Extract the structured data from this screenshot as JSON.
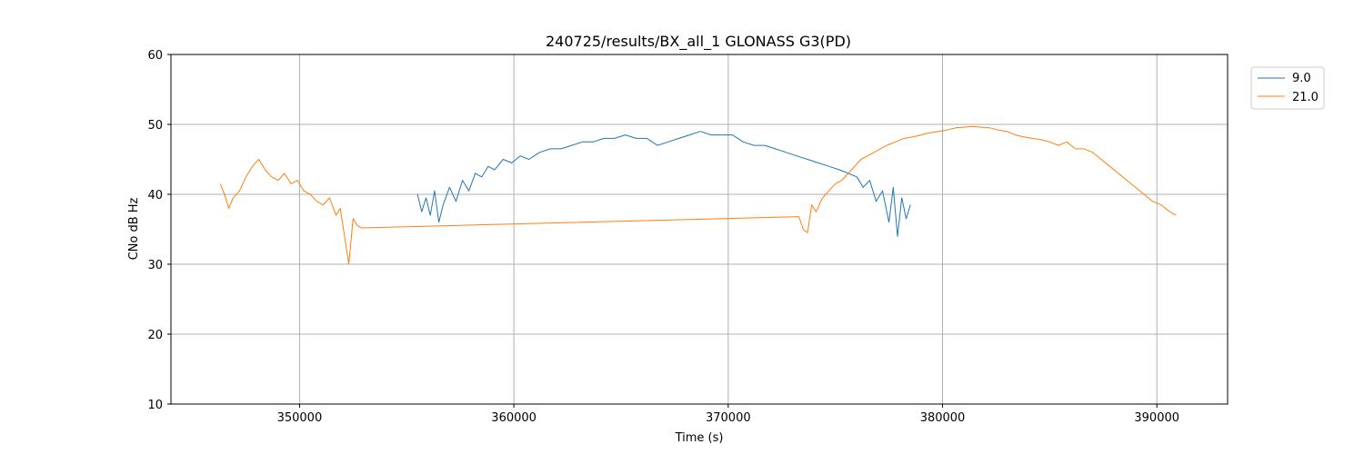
{
  "chart_data": {
    "type": "line",
    "title": "240725/results/BX_all_1 GLONASS G3(PD)",
    "xlabel": "Time (s)",
    "ylabel": "CNo dB Hz",
    "xlim": [
      344000,
      393300
    ],
    "ylim": [
      10,
      60
    ],
    "xticks": [
      350000,
      360000,
      370000,
      380000,
      390000
    ],
    "yticks": [
      10,
      20,
      30,
      40,
      50,
      60
    ],
    "grid": true,
    "legend_position": "outside-top-right",
    "series": [
      {
        "name": "9.0",
        "color": "#1f77b4",
        "x": [
          355500,
          355700,
          355900,
          356100,
          356300,
          356500,
          356700,
          357000,
          357300,
          357600,
          357900,
          358200,
          358500,
          358800,
          359100,
          359500,
          359900,
          360300,
          360700,
          361200,
          361700,
          362200,
          362700,
          363200,
          363700,
          364200,
          364700,
          365200,
          365700,
          366200,
          366700,
          367200,
          367700,
          368200,
          368700,
          369200,
          369700,
          370200,
          370700,
          371200,
          371700,
          372200,
          372700,
          373200,
          373700,
          374200,
          374700,
          375200,
          375600,
          376000,
          376300,
          376600,
          376900,
          377200,
          377500,
          377700,
          377900,
          378100,
          378300,
          378500
        ],
        "y": [
          40.0,
          37.5,
          39.5,
          37.0,
          40.5,
          36.0,
          38.5,
          41.0,
          39.0,
          42.0,
          40.5,
          43.0,
          42.5,
          44.0,
          43.5,
          45.0,
          44.5,
          45.5,
          45.0,
          46.0,
          46.5,
          46.5,
          47.0,
          47.5,
          47.5,
          48.0,
          48.0,
          48.5,
          48.0,
          48.0,
          47.0,
          47.5,
          48.0,
          48.5,
          49.0,
          48.5,
          48.5,
          48.5,
          47.5,
          47.0,
          47.0,
          46.5,
          46.0,
          45.5,
          45.0,
          44.5,
          44.0,
          43.5,
          43.0,
          42.5,
          41.0,
          42.0,
          39.0,
          40.5,
          36.0,
          41.0,
          34.0,
          39.5,
          36.5,
          38.5
        ]
      },
      {
        "name": "21.0",
        "color": "#ff7f0e",
        "x": [
          346300,
          346500,
          346700,
          346900,
          347200,
          347500,
          347800,
          348100,
          348400,
          348700,
          349000,
          349300,
          349600,
          349900,
          350200,
          350500,
          350800,
          351100,
          351400,
          351700,
          351900,
          352100,
          352300,
          352500,
          352700,
          352900,
          373300,
          373500,
          373700,
          373900,
          374100,
          374400,
          374700,
          375000,
          375300,
          375600,
          375900,
          376200,
          376500,
          376800,
          377100,
          377400,
          377800,
          378200,
          378600,
          379000,
          379400,
          379800,
          380200,
          380600,
          381000,
          381400,
          381800,
          382200,
          382600,
          383000,
          383400,
          383800,
          384200,
          384600,
          385000,
          385400,
          385800,
          386200,
          386600,
          387000,
          387400,
          387800,
          388200,
          388600,
          389000,
          389400,
          389800,
          390200,
          390600,
          390900
        ],
        "y": [
          41.5,
          40.0,
          38.0,
          39.5,
          40.5,
          42.5,
          44.0,
          45.0,
          43.5,
          42.5,
          42.0,
          43.0,
          41.5,
          42.0,
          40.5,
          40.0,
          39.0,
          38.5,
          39.5,
          37.0,
          38.0,
          34.0,
          30.0,
          36.5,
          35.5,
          35.2,
          36.8,
          35.0,
          34.5,
          38.5,
          37.5,
          39.5,
          40.5,
          41.5,
          42.0,
          43.0,
          44.0,
          45.0,
          45.5,
          46.0,
          46.5,
          47.0,
          47.5,
          48.0,
          48.2,
          48.5,
          48.8,
          49.0,
          49.2,
          49.5,
          49.6,
          49.7,
          49.6,
          49.5,
          49.2,
          49.0,
          48.5,
          48.2,
          48.0,
          47.8,
          47.5,
          47.0,
          47.5,
          46.5,
          46.5,
          46.0,
          45.0,
          44.0,
          43.0,
          42.0,
          41.0,
          40.0,
          39.0,
          38.5,
          37.5,
          37.0
        ]
      }
    ]
  }
}
